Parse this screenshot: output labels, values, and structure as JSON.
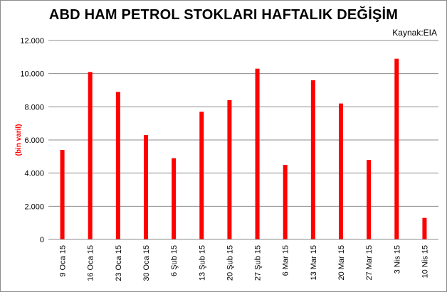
{
  "chart_data": {
    "type": "bar",
    "title": "ABD HAM PETROL STOKLARI HAFTALIK DEĞİŞİM",
    "source": "Kaynak:EIA",
    "xlabel": "",
    "ylabel": "(bin varil)",
    "categories": [
      "9 Oca 15",
      "16 Oca 15",
      "23 Oca 15",
      "30 Oca 15",
      "6 Şub 15",
      "13 Şub 15",
      "20 Şub 15",
      "27 Şub 15",
      "6 Mar 15",
      "13 Mar 15",
      "20 Mar 15",
      "27 Mar 15",
      "3 Nis 15",
      "10 Nis 15"
    ],
    "values": [
      5400,
      10100,
      8900,
      6300,
      4900,
      7700,
      8400,
      10300,
      4500,
      9600,
      8200,
      4800,
      10900,
      1300
    ],
    "ylim": [
      0,
      12000
    ],
    "yticks": [
      0,
      2000,
      4000,
      6000,
      8000,
      10000,
      12000
    ],
    "ytick_labels": [
      "0",
      "2.000",
      "4.000",
      "6.000",
      "8.000",
      "10.000",
      "12.000"
    ],
    "grid": true,
    "legend": "none",
    "bar_color": "#ff0000"
  }
}
